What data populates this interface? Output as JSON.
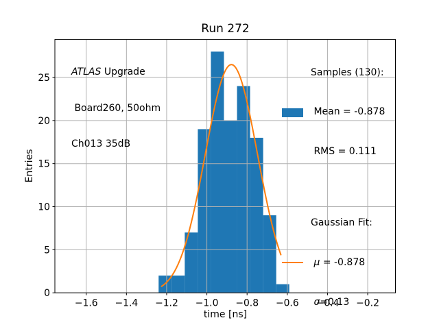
{
  "chart_data": {
    "type": "bar",
    "subtype": "histogram-with-gaussian-fit",
    "title": "Run 272",
    "xlabel": "time [ns]",
    "ylabel": "Entries",
    "xlim": [
      -1.756,
      -0.062
    ],
    "ylim": [
      0,
      29.41
    ],
    "x_ticks": [
      -1.6,
      -1.4,
      -1.2,
      -1.0,
      -0.8,
      -0.6,
      -0.4,
      -0.2
    ],
    "x_tick_labels": [
      "−1.6",
      "−1.4",
      "−1.2",
      "−1.0",
      "−0.8",
      "−0.6",
      "−0.4",
      "−0.2"
    ],
    "y_ticks": [
      0,
      5,
      10,
      15,
      20,
      25
    ],
    "y_tick_labels": [
      "0",
      "5",
      "10",
      "15",
      "20",
      "25"
    ],
    "grid": true,
    "grid_color": "#b0b0b0",
    "bar_color": "#1f77b4",
    "fit_color": "#ff7f0e",
    "background_color": "#ffffff",
    "legend_position": "upper right",
    "histogram": {
      "bin_edges": [
        -1.24,
        -1.175,
        -1.11,
        -1.045,
        -0.98,
        -0.915,
        -0.85,
        -0.785,
        -0.72,
        -0.655,
        -0.59
      ],
      "counts": [
        2,
        2,
        7,
        19,
        28,
        20,
        24,
        18,
        9,
        1
      ],
      "n_samples": 130,
      "mean": -0.878,
      "rms": 0.111
    },
    "gaussian_fit": {
      "amplitude": 26.5,
      "mu": -0.878,
      "sigma": 0.13,
      "x_start": -1.225,
      "x_end": -0.632
    }
  },
  "annotation": {
    "line1_italic": "ATLAS",
    "line1_rest": " Upgrade",
    "line2": " Board260, 50ohm",
    "line3": "Ch013 35dB"
  },
  "legend": {
    "samples": {
      "line1": "Samples (130):",
      "line2": " Mean = -0.878",
      "line3": " RMS = 0.111",
      "swatch_color": "#1f77b4"
    },
    "fit": {
      "line1": "Gaussian Fit:",
      "mu_space": " ",
      "mu_symbol": "μ",
      "mu_value": " = -0.878",
      "sigma_space": " ",
      "sigma_symbol": "σ",
      "sigma_value": "=0.13",
      "swatch_color": "#ff7f0e"
    }
  }
}
